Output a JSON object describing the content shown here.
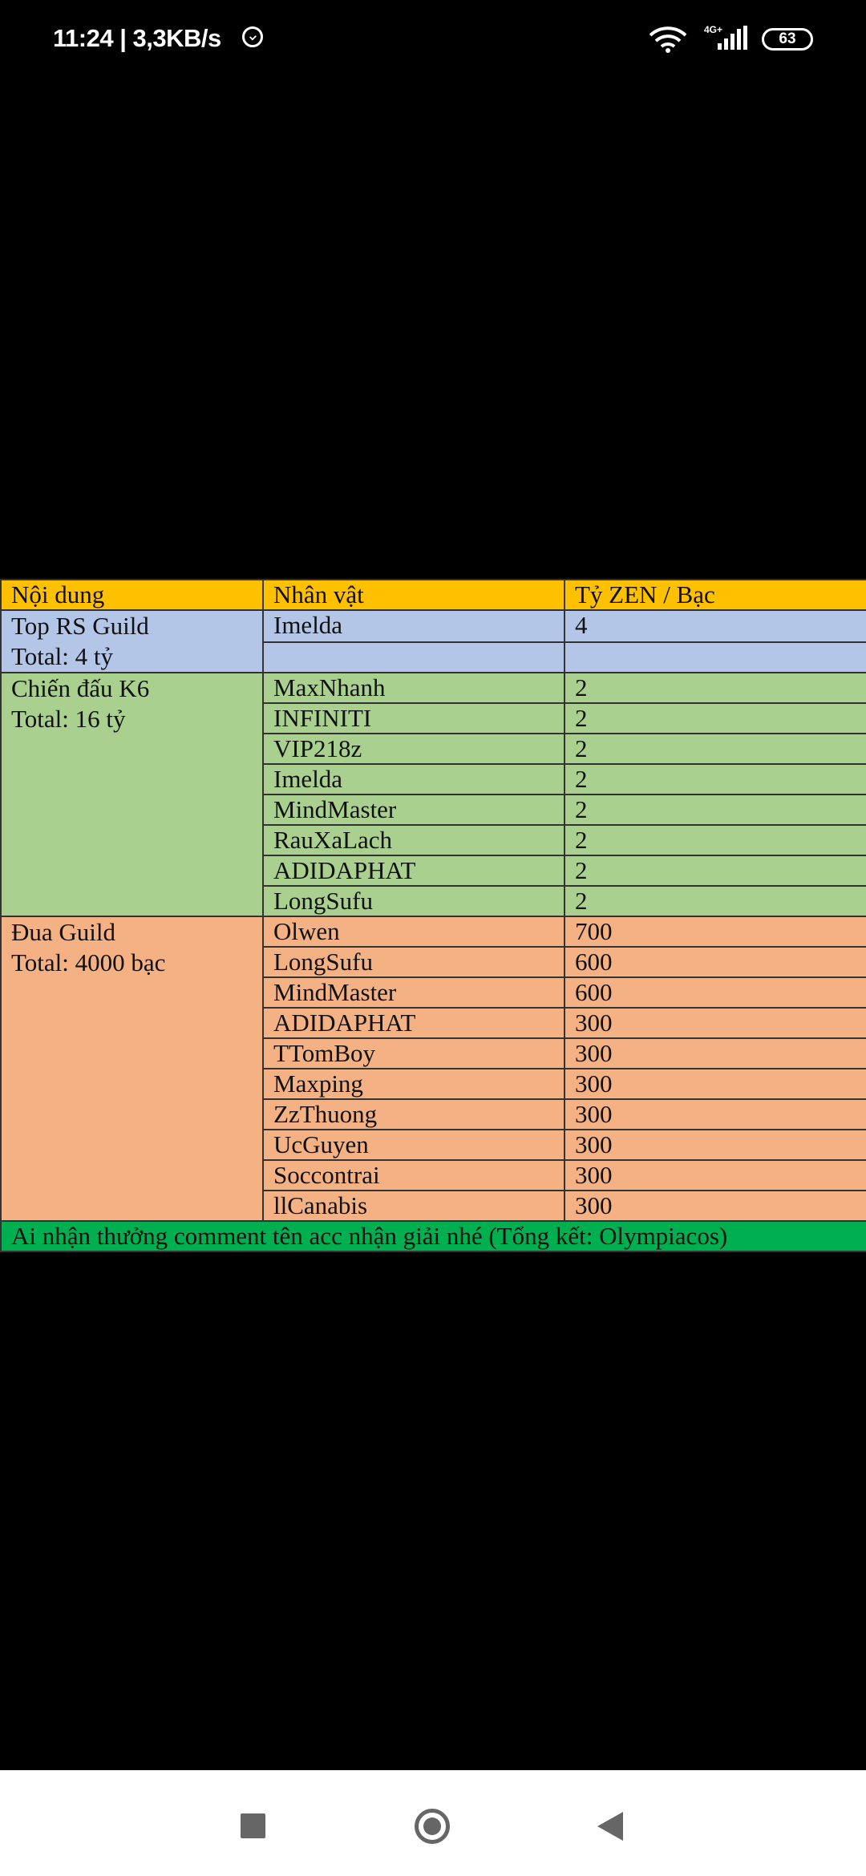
{
  "status_bar": {
    "time": "11:24 | 3,3KB/s",
    "network": "4G+",
    "battery": "63"
  },
  "table": {
    "headers": [
      "Nội dung",
      "Nhân vật",
      "Tỷ ZEN / Bạc"
    ],
    "groups": [
      {
        "title": "Top RS Guild",
        "total": "Total: 4 tỷ",
        "color": "#b4c6e7",
        "rows": [
          [
            "Imelda",
            "4"
          ],
          [
            "",
            ""
          ]
        ]
      },
      {
        "title": "Chiến đấu K6",
        "total": "Total: 16 tỷ",
        "color": "#a9d08e",
        "rows": [
          [
            "MaxNhanh",
            "2"
          ],
          [
            "INFINITI",
            "2"
          ],
          [
            "VIP218z",
            "2"
          ],
          [
            "Imelda",
            "2"
          ],
          [
            "MindMaster",
            "2"
          ],
          [
            "RauXaLach",
            "2"
          ],
          [
            "ADIDAPHAT",
            "2"
          ],
          [
            "LongSufu",
            "2"
          ]
        ]
      },
      {
        "title": "Đua Guild",
        "total": "Total: 4000 bạc",
        "color": "#f4b183",
        "rows": [
          [
            "Olwen",
            "700"
          ],
          [
            "LongSufu",
            "600"
          ],
          [
            "MindMaster",
            "600"
          ],
          [
            "ADIDAPHAT",
            "300"
          ],
          [
            "TTomBoy",
            "300"
          ],
          [
            "Maxping",
            "300"
          ],
          [
            "ZzThuong",
            "300"
          ],
          [
            "UcGuyen",
            "300"
          ],
          [
            "Soccontrai",
            "300"
          ],
          [
            "llCanabis",
            "300"
          ]
        ]
      }
    ],
    "footer": "Ai nhận thưởng comment tên acc nhận giải nhé (Tổng kết: Olympiacos)"
  },
  "nav_bar": {
    "icons": [
      "recents-square-icon",
      "home-circle-icon",
      "back-triangle-icon"
    ]
  }
}
